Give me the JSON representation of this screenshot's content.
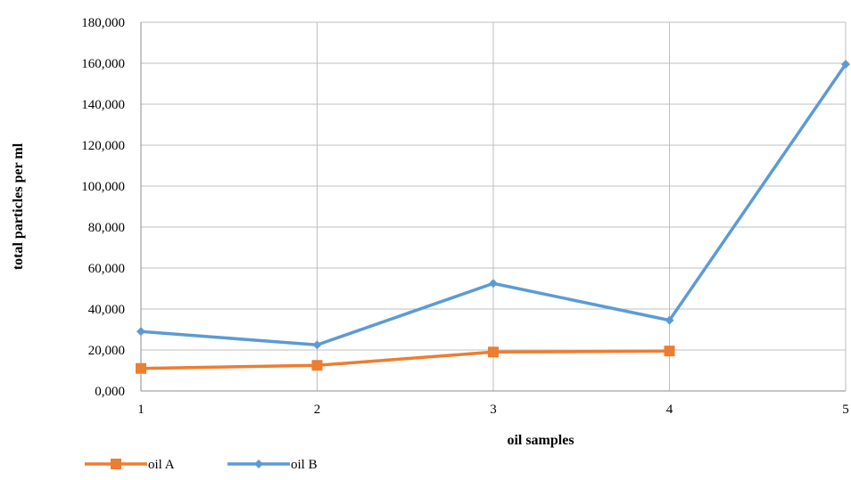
{
  "chart_data": {
    "type": "line",
    "title": "",
    "xlabel": "oil samples",
    "ylabel": "total particles per ml",
    "x": [
      1,
      2,
      3,
      4,
      5
    ],
    "ylim": [
      0,
      180000
    ],
    "y_ticks": [
      "0,000",
      "20,000",
      "40,000",
      "60,000",
      "80,000",
      "100,000",
      "120,000",
      "140,000",
      "160,000",
      "180,000"
    ],
    "x_ticks": [
      "1",
      "2",
      "3",
      "4",
      "5"
    ],
    "grid": true,
    "legend_position": "bottom-left",
    "series": [
      {
        "name": "oil A",
        "color": "#ED7D31",
        "marker": "square",
        "values": [
          11000,
          12500,
          19000,
          19500,
          null
        ]
      },
      {
        "name": "oil B",
        "color": "#5B9BD5",
        "marker": "diamond",
        "values": [
          29000,
          22500,
          52500,
          34500,
          159500
        ]
      }
    ]
  }
}
